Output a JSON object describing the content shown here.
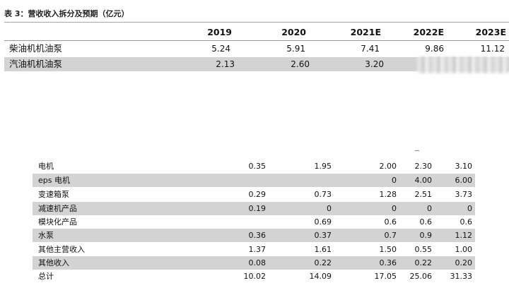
{
  "caption": "表 3：营收收入拆分及预期（亿元）",
  "table1": {
    "headers": [
      "2019",
      "2020",
      "2021E",
      "2022E",
      "2023E"
    ],
    "rows": [
      {
        "label": "柴油机机油泵",
        "values": [
          "5.24",
          "5.91",
          "7.41",
          "9.86",
          "11.12"
        ]
      },
      {
        "label": "汽油机机油泵",
        "values": [
          "2.13",
          "2.60",
          "3.20",
          "",
          ""
        ]
      }
    ]
  },
  "table2": {
    "rows": [
      {
        "label": "电机",
        "values": [
          "0.35",
          "1.95",
          "2.00",
          "2.30",
          "3.10"
        ]
      },
      {
        "label": "eps 电机",
        "values": [
          "",
          "",
          "0",
          "4.00",
          "6.00"
        ]
      },
      {
        "label": "变速箱泵",
        "values": [
          "0.29",
          "0.73",
          "1.28",
          "2.51",
          "3.73"
        ]
      },
      {
        "label": "减速机产品",
        "values": [
          "0.19",
          "0",
          "0",
          "0",
          "0"
        ]
      },
      {
        "label": "模块化产品",
        "values": [
          "",
          "0.69",
          "0.6",
          "0.6",
          "0.6"
        ]
      },
      {
        "label": "水泵",
        "values": [
          "0.36",
          "0.37",
          "0.7",
          "0.9",
          "1.12"
        ]
      },
      {
        "label": "其他主营收入",
        "values": [
          "1.37",
          "1.61",
          "1.50",
          "0.55",
          "1.00"
        ]
      },
      {
        "label": "其他收入",
        "values": [
          "0.08",
          "0.22",
          "0.36",
          "0.22",
          "0.20"
        ]
      },
      {
        "label": "总计",
        "values": [
          "10.02",
          "14.09",
          "17.05",
          "25.06",
          "31.33"
        ]
      }
    ]
  }
}
